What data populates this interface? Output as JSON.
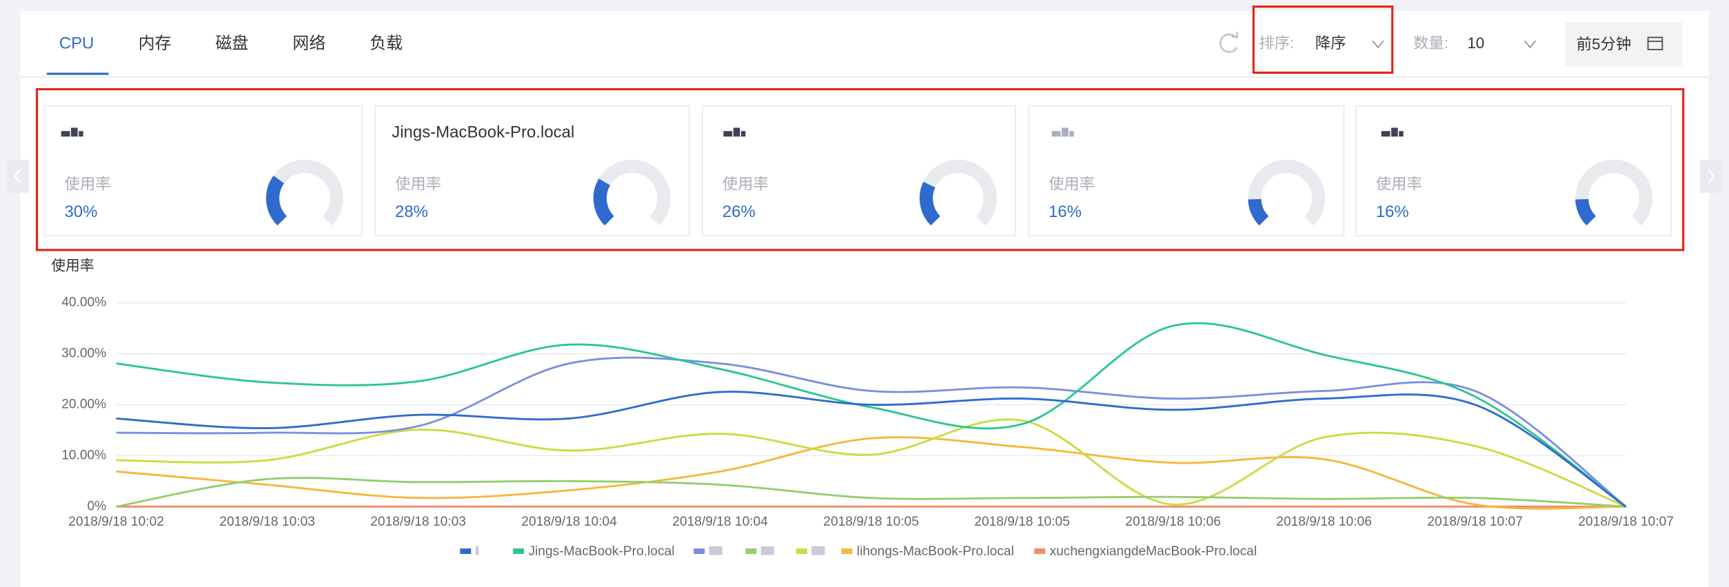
{
  "tabs": [
    "CPU",
    "内存",
    "磁盘",
    "网络",
    "负载"
  ],
  "controls": {
    "sort_label": "排序:",
    "sort_value": "降序",
    "count_label": "数量:",
    "count_value": "10",
    "range": "前5分钟"
  },
  "cards": [
    {
      "label": "使用率",
      "value": 30,
      "value_label": "30%"
    },
    {
      "name": "Jings-MacBook-Pro.local",
      "label": "使用率",
      "value": 28,
      "value_label": "28%"
    },
    {
      "label": "使用率",
      "value": 26,
      "value_label": "26%"
    },
    {
      "label": "使用率",
      "value": 16,
      "value_label": "16%"
    },
    {
      "label": "使用率",
      "value": 16,
      "value_label": "16%"
    }
  ],
  "chart_data": {
    "type": "line",
    "y_label": "使用率",
    "categories": [
      "2018/9/18 10:02",
      "2018/9/18 10:03",
      "2018/9/18 10:03",
      "2018/9/18 10:04",
      "2018/9/18 10:04",
      "2018/9/18 10:05",
      "2018/9/18 10:05",
      "2018/9/18 10:06",
      "2018/9/18 10:06",
      "2018/9/18 10:07",
      "2018/9/18 10:07"
    ],
    "ylim": [
      0,
      40
    ],
    "yticks": [
      {
        "value": 0,
        "label": "0%"
      },
      {
        "value": 10,
        "label": "10.00%"
      },
      {
        "value": 20,
        "label": "20.00%"
      },
      {
        "value": 30,
        "label": "30.00%"
      },
      {
        "value": 40,
        "label": "40.00%"
      }
    ],
    "grid": true,
    "smooth": true,
    "series": [
      {
        "color": "#2f6bce",
        "values": [
          17.3,
          15.4,
          18,
          17.3,
          22.5,
          20,
          21.2,
          19,
          21.2,
          20,
          0
        ]
      },
      {
        "name": "Jings-MacBook-Pro.local",
        "color": "#2bc68f",
        "values": [
          28.1,
          24.4,
          24.6,
          31.8,
          27,
          19.5,
          16.2,
          35.5,
          29.8,
          21.6,
          0
        ]
      },
      {
        "color": "#7b8fde",
        "values": [
          14.5,
          14.5,
          15.8,
          28.1,
          28.1,
          22.7,
          23.4,
          21.2,
          22.7,
          22.7,
          0
        ]
      },
      {
        "color": "#93cf6e",
        "values": [
          0,
          5.4,
          4.8,
          5,
          4.3,
          1.7,
          1.7,
          1.9,
          1.5,
          1.7,
          0
        ]
      },
      {
        "color": "#c9dc3e",
        "values": [
          9.1,
          9.1,
          15.1,
          11,
          14.3,
          10.2,
          16.9,
          0.4,
          13.6,
          11.9,
          0
        ]
      },
      {
        "name": "lihongs-MacBook-Pro.local",
        "color": "#f6b73c",
        "values": [
          6.9,
          4.3,
          1.7,
          3.2,
          6.9,
          13.4,
          11.7,
          8.6,
          9.3,
          0.4,
          0
        ]
      },
      {
        "name": "xuchengxiangdeMacBook-Pro.local",
        "color": "#f28b69",
        "values": [
          0,
          0,
          0,
          0,
          0,
          0,
          0,
          0,
          0,
          0,
          0
        ]
      }
    ]
  }
}
